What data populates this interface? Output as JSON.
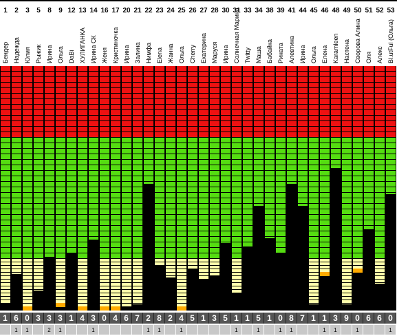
{
  "colors": {
    "red": "#ee1111",
    "green": "#55dd11",
    "cream": "#ffffaa",
    "orange": "#ffaa00",
    "black": "#000000",
    "score_bg": "#555555",
    "extra_bg": "#c8c8c8"
  },
  "columns": [
    {
      "num": "1",
      "name": "Бендер",
      "score": "1",
      "extra": "",
      "level": 0.03,
      "orange": false
    },
    {
      "num": "2",
      "name": "Надежда",
      "score": "6",
      "extra": "1",
      "level": 0.2,
      "orange": false
    },
    {
      "num": "3",
      "name": "Юлия",
      "score": "0",
      "extra": "1",
      "level": 0.0,
      "orange": true
    },
    {
      "num": "5",
      "name": "Рыжик",
      "score": "3",
      "extra": "",
      "level": 0.1,
      "orange": false
    },
    {
      "num": "8",
      "name": "Ирина",
      "score": "3",
      "extra": "2",
      "level": 0.3,
      "orange": false
    },
    {
      "num": "9",
      "name": "Ольга",
      "score": "3",
      "extra": "1",
      "level": 0.03,
      "orange": true
    },
    {
      "num": "12",
      "name": "DaBi",
      "score": "1",
      "extra": "",
      "level": 0.32,
      "orange": false
    },
    {
      "num": "13",
      "name": "ХУЛИГАНКА",
      "score": "4",
      "extra": "",
      "level": 0.0,
      "orange": true
    },
    {
      "num": "14",
      "name": "Ирина СК",
      "score": "3",
      "extra": "1",
      "level": 0.4,
      "orange": false
    },
    {
      "num": "16",
      "name": "Женя",
      "score": "0",
      "extra": "",
      "level": 0.0,
      "orange": true
    },
    {
      "num": "17",
      "name": "Кристиночка",
      "score": "4",
      "extra": "",
      "level": 0.0,
      "orange": true
    },
    {
      "num": "20",
      "name": "Ирина",
      "score": "6",
      "extra": "",
      "level": 0.01,
      "orange": false
    },
    {
      "num": "21",
      "name": "Залина",
      "score": "7",
      "extra": "",
      "level": 0.02,
      "orange": false
    },
    {
      "num": "22",
      "name": "Нимфа",
      "score": "2",
      "extra": "1",
      "level": 0.73,
      "orange": false
    },
    {
      "num": "23",
      "name": "Elena",
      "score": "8",
      "extra": "1",
      "level": 0.25,
      "orange": false
    },
    {
      "num": "24",
      "name": "Жанна",
      "score": "2",
      "extra": "",
      "level": 0.18,
      "orange": false
    },
    {
      "num": "25",
      "name": "Ольга",
      "score": "4",
      "extra": "1",
      "level": 0.0,
      "orange": true
    },
    {
      "num": "26",
      "name": "Cherry",
      "score": "5",
      "extra": "",
      "level": 0.23,
      "orange": false
    },
    {
      "num": "27",
      "name": "Екатерина",
      "score": "1",
      "extra": "",
      "level": 0.17,
      "orange": false
    },
    {
      "num": "28",
      "name": "Маруся",
      "score": "3",
      "extra": "",
      "level": 0.19,
      "orange": false
    },
    {
      "num": "30",
      "name": "Ирина",
      "score": "5",
      "extra": "",
      "level": 0.38,
      "orange": false
    },
    {
      "num": "31",
      "name": "Солнечная Марина",
      "score": "1",
      "extra": "1",
      "level": 0.09,
      "orange": false
    },
    {
      "num": "33",
      "name": "Twitty",
      "score": "1",
      "extra": "",
      "level": 0.36,
      "orange": false
    },
    {
      "num": "34",
      "name": "Маша",
      "score": "5",
      "extra": "1",
      "level": 0.6,
      "orange": false
    },
    {
      "num": "38",
      "name": "Бабайка",
      "score": "1",
      "extra": "",
      "level": 0.41,
      "orange": false
    },
    {
      "num": "39",
      "name": "Рината",
      "score": "0",
      "extra": "1",
      "level": 0.32,
      "orange": false
    },
    {
      "num": "41",
      "name": "Алевтина",
      "score": "8",
      "extra": "1",
      "level": 0.73,
      "orange": false
    },
    {
      "num": "44",
      "name": "Ирина",
      "score": "7",
      "extra": "",
      "level": 0.6,
      "orange": false
    },
    {
      "num": "45",
      "name": "Ольга",
      "score": "1",
      "extra": "",
      "level": 0.02,
      "orange": false
    },
    {
      "num": "46",
      "name": "Елена",
      "score": "1",
      "extra": "1",
      "level": 0.21,
      "orange": true
    },
    {
      "num": "48",
      "name": "Karamleen",
      "score": "3",
      "extra": "1",
      "level": 0.82,
      "orange": false
    },
    {
      "num": "49",
      "name": "Настена",
      "score": "9",
      "extra": "",
      "level": 0.02,
      "orange": false
    },
    {
      "num": "50",
      "name": "Своровa Алина",
      "score": "0",
      "extra": "1",
      "level": 0.23,
      "orange": true
    },
    {
      "num": "51",
      "name": "Оля",
      "score": "6",
      "extra": "",
      "level": 0.46,
      "orange": false
    },
    {
      "num": "52",
      "name": "Алекс",
      "score": "6",
      "extra": "",
      "level": 0.14,
      "orange": false
    },
    {
      "num": "53",
      "name": "Bl.utFul (Ольга)",
      "score": "0",
      "extra": "1",
      "level": 0.67,
      "orange": false
    }
  ]
}
